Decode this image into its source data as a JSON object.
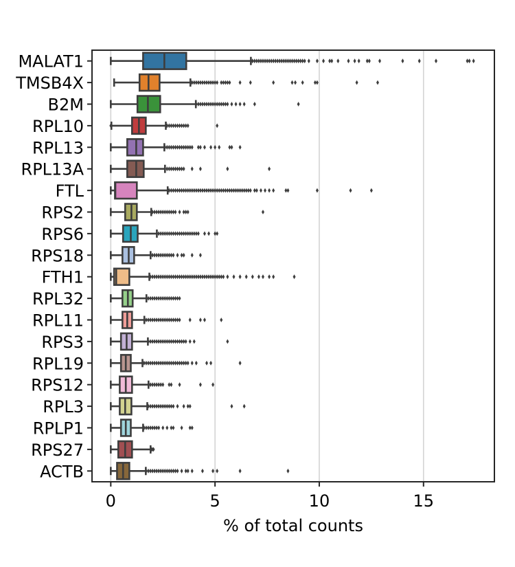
{
  "chart_data": {
    "type": "boxplot",
    "orientation": "horizontal",
    "title": "",
    "xlabel": "% of total counts",
    "ylabel": "",
    "xlim": [
      -0.9,
      18.4
    ],
    "xticks": [
      0,
      5,
      10,
      15
    ],
    "xtick_labels": [
      "0",
      "5",
      "10",
      "15"
    ],
    "grid": "vertical",
    "categories": [
      "MALAT1",
      "TMSB4X",
      "B2M",
      "RPL10",
      "RPL13",
      "RPL13A",
      "FTL",
      "RPS2",
      "RPS6",
      "RPS18",
      "FTH1",
      "RPL32",
      "RPL11",
      "RPS3",
      "RPL19",
      "RPS12",
      "RPL3",
      "RPLP1",
      "RPS27",
      "ACTB"
    ],
    "series": [
      {
        "name": "MALAT1",
        "color": "#3274a1",
        "whislo": 0.0,
        "q1": 1.55,
        "med": 2.57,
        "q3": 3.62,
        "whishi": 6.72,
        "fliers": [
          6.8,
          6.9,
          7.0,
          7.1,
          7.2,
          7.3,
          7.4,
          7.5,
          7.6,
          7.7,
          7.8,
          7.9,
          8.0,
          8.1,
          8.2,
          8.3,
          8.4,
          8.5,
          8.6,
          8.7,
          8.8,
          8.9,
          9.0,
          9.1,
          9.2,
          9.3,
          9.5,
          9.9,
          10.2,
          10.5,
          10.6,
          10.9,
          11.4,
          11.7,
          11.9,
          12.3,
          12.4,
          12.9,
          14.0,
          14.8,
          15.6,
          17.1,
          17.2,
          17.4
        ]
      },
      {
        "name": "TMSB4X",
        "color": "#e1812c",
        "whislo": 0.16,
        "q1": 1.38,
        "med": 1.81,
        "q3": 2.34,
        "whishi": 3.82,
        "fliers": [
          3.9,
          4.0,
          4.1,
          4.2,
          4.3,
          4.4,
          4.5,
          4.6,
          4.7,
          4.8,
          4.9,
          5.0,
          5.1,
          5.3,
          5.4,
          5.5,
          5.6,
          5.7,
          6.2,
          6.7,
          7.8,
          8.7,
          8.85,
          9.2,
          9.8,
          9.9,
          11.8,
          12.8
        ]
      },
      {
        "name": "B2M",
        "color": "#3a923a",
        "whislo": 0.0,
        "q1": 1.28,
        "med": 1.78,
        "q3": 2.37,
        "whishi": 4.08,
        "fliers": [
          4.1,
          4.2,
          4.3,
          4.4,
          4.5,
          4.6,
          4.7,
          4.8,
          4.9,
          5.0,
          5.1,
          5.2,
          5.3,
          5.4,
          5.5,
          5.6,
          5.8,
          6.0,
          6.2,
          6.4,
          6.9,
          9.0
        ]
      },
      {
        "name": "RPL10",
        "color": "#c03d3e",
        "whislo": 0.03,
        "q1": 1.02,
        "med": 1.35,
        "q3": 1.68,
        "whishi": 2.64,
        "fliers": [
          0.0,
          0.01,
          2.7,
          2.8,
          2.9,
          3.0,
          3.1,
          3.2,
          3.3,
          3.4,
          3.5,
          3.6,
          3.7,
          5.1
        ]
      },
      {
        "name": "RPL13",
        "color": "#9372b2",
        "whislo": 0.0,
        "q1": 0.79,
        "med": 1.22,
        "q3": 1.55,
        "whishi": 2.57,
        "fliers": [
          2.6,
          2.7,
          2.8,
          2.9,
          3.0,
          3.1,
          3.2,
          3.3,
          3.4,
          3.5,
          3.6,
          3.7,
          3.8,
          3.9,
          4.2,
          4.3,
          4.5,
          4.8,
          5.0,
          5.2,
          5.7,
          5.8,
          6.2
        ]
      },
      {
        "name": "RPL13A",
        "color": "#845b53",
        "whislo": 0.0,
        "q1": 0.79,
        "med": 1.22,
        "q3": 1.58,
        "whishi": 2.6,
        "fliers": [
          2.7,
          2.8,
          2.9,
          3.0,
          3.1,
          3.2,
          3.3,
          3.4,
          3.5,
          3.9,
          4.3,
          5.6,
          7.6
        ]
      },
      {
        "name": "FTL",
        "color": "#d684bd",
        "whislo": 0.0,
        "q1": 0.2,
        "med": 0.22,
        "q3": 1.25,
        "whishi": 2.73,
        "fliers": [
          2.8,
          2.9,
          3.0,
          3.1,
          3.2,
          3.3,
          3.4,
          3.5,
          3.6,
          3.7,
          3.8,
          3.9,
          4.0,
          4.1,
          4.2,
          4.3,
          4.4,
          4.5,
          4.6,
          4.7,
          4.8,
          4.9,
          5.0,
          5.1,
          5.2,
          5.3,
          5.4,
          5.5,
          5.6,
          5.7,
          5.8,
          5.9,
          6.0,
          6.1,
          6.2,
          6.3,
          6.4,
          6.5,
          6.6,
          6.7,
          6.9,
          7.0,
          7.2,
          7.4,
          7.6,
          7.8,
          8.4,
          8.5,
          9.9,
          11.5,
          12.5
        ]
      },
      {
        "name": "RPS2",
        "color": "#a9aa60",
        "whislo": 0.0,
        "q1": 0.69,
        "med": 0.99,
        "q3": 1.25,
        "whishi": 1.94,
        "fliers": [
          2.0,
          2.1,
          2.2,
          2.3,
          2.4,
          2.5,
          2.6,
          2.7,
          2.8,
          2.9,
          3.0,
          3.1,
          3.3,
          3.5,
          3.6,
          3.7,
          7.3
        ]
      },
      {
        "name": "RPS6",
        "color": "#2aa5bd",
        "whislo": 0.0,
        "q1": 0.59,
        "med": 0.96,
        "q3": 1.29,
        "whishi": 2.21,
        "fliers": [
          2.3,
          2.4,
          2.5,
          2.6,
          2.7,
          2.8,
          2.9,
          3.0,
          3.1,
          3.2,
          3.3,
          3.4,
          3.5,
          3.6,
          3.7,
          3.8,
          3.9,
          4.0,
          4.1,
          4.2,
          4.5,
          4.7,
          5.0,
          5.1
        ]
      },
      {
        "name": "RPS18",
        "color": "#aac0e0",
        "whislo": 0.0,
        "q1": 0.56,
        "med": 0.86,
        "q3": 1.12,
        "whishi": 1.91,
        "fliers": [
          2.0,
          2.1,
          2.2,
          2.3,
          2.4,
          2.5,
          2.6,
          2.7,
          2.8,
          2.9,
          3.0,
          3.2,
          3.4,
          3.5,
          3.9,
          4.3
        ]
      },
      {
        "name": "FTH1",
        "color": "#eebc88",
        "whislo": 0.0,
        "q1": 0.16,
        "med": 0.26,
        "q3": 0.89,
        "whishi": 1.85,
        "fliers": [
          1.9,
          2.0,
          2.1,
          2.2,
          2.3,
          2.4,
          2.5,
          2.6,
          2.7,
          2.8,
          2.9,
          3.0,
          3.1,
          3.2,
          3.3,
          3.4,
          3.5,
          3.6,
          3.7,
          3.8,
          3.9,
          4.0,
          4.1,
          4.2,
          4.3,
          4.4,
          4.5,
          4.6,
          4.7,
          4.8,
          4.9,
          5.0,
          5.1,
          5.2,
          5.3,
          5.4,
          5.6,
          5.9,
          6.2,
          6.5,
          6.8,
          7.1,
          7.3,
          7.6,
          7.8,
          8.8
        ]
      },
      {
        "name": "RPL32",
        "color": "#95d08a",
        "whislo": 0.0,
        "q1": 0.56,
        "med": 0.82,
        "q3": 1.05,
        "whishi": 1.71,
        "fliers": [
          1.8,
          1.9,
          2.0,
          2.1,
          2.2,
          2.3,
          2.4,
          2.5,
          2.6,
          2.7,
          2.8,
          2.9,
          3.0,
          3.1,
          3.2,
          3.3
        ]
      },
      {
        "name": "RPL11",
        "color": "#f09d98",
        "whislo": 0.0,
        "q1": 0.56,
        "med": 0.79,
        "q3": 1.02,
        "whishi": 1.61,
        "fliers": [
          1.7,
          1.8,
          1.9,
          2.0,
          2.1,
          2.2,
          2.3,
          2.4,
          2.5,
          2.6,
          2.7,
          2.8,
          2.9,
          3.0,
          3.1,
          3.2,
          3.3,
          3.8,
          4.3,
          4.5,
          5.3
        ]
      },
      {
        "name": "RPS3",
        "color": "#c3b1d6",
        "whislo": 0.0,
        "q1": 0.49,
        "med": 0.76,
        "q3": 1.02,
        "whishi": 1.78,
        "fliers": [
          1.8,
          1.9,
          2.0,
          2.1,
          2.2,
          2.3,
          2.4,
          2.5,
          2.6,
          2.7,
          2.8,
          2.9,
          3.0,
          3.1,
          3.2,
          3.3,
          3.4,
          3.5,
          3.6,
          3.8,
          4.0,
          5.6
        ]
      },
      {
        "name": "RPL19",
        "color": "#b99690",
        "whislo": 0.0,
        "q1": 0.49,
        "med": 0.72,
        "q3": 0.96,
        "whishi": 1.52,
        "fliers": [
          1.6,
          1.7,
          1.8,
          1.9,
          2.0,
          2.1,
          2.2,
          2.3,
          2.4,
          2.5,
          2.6,
          2.7,
          2.8,
          2.9,
          3.0,
          3.1,
          3.2,
          3.3,
          3.4,
          3.5,
          3.6,
          3.7,
          3.9,
          4.1,
          4.6,
          4.8,
          6.2
        ]
      },
      {
        "name": "RPS12",
        "color": "#f1bbd8",
        "whislo": 0.0,
        "q1": 0.43,
        "med": 0.72,
        "q3": 1.02,
        "whishi": 1.81,
        "fliers": [
          1.9,
          2.0,
          2.1,
          2.2,
          2.3,
          2.4,
          2.5,
          2.8,
          2.9,
          3.3,
          4.3,
          4.9
        ]
      },
      {
        "name": "RPL3",
        "color": "#d3d390",
        "whislo": 0.0,
        "q1": 0.43,
        "med": 0.69,
        "q3": 0.99,
        "whishi": 1.75,
        "fliers": [
          1.8,
          1.9,
          2.0,
          2.1,
          2.2,
          2.3,
          2.4,
          2.5,
          2.6,
          2.7,
          2.8,
          2.9,
          3.0,
          3.2,
          3.5,
          3.7,
          3.8,
          5.8,
          6.4
        ]
      },
      {
        "name": "RPLP1",
        "color": "#9fd5dd",
        "whislo": 0.0,
        "q1": 0.49,
        "med": 0.72,
        "q3": 0.96,
        "whishi": 1.55,
        "fliers": [
          1.6,
          1.7,
          1.8,
          1.9,
          2.0,
          2.1,
          2.2,
          2.3,
          2.5,
          2.7,
          2.9,
          3.0,
          3.4,
          3.8,
          3.9
        ]
      },
      {
        "name": "RPS27",
        "color": "#a14f52",
        "whislo": 0.0,
        "q1": 0.36,
        "med": 0.69,
        "q3": 1.02,
        "whishi": 1.91,
        "fliers": [
          1.95,
          2.0,
          2.05
        ]
      },
      {
        "name": "ACTB",
        "color": "#87673a",
        "whislo": 0.0,
        "q1": 0.3,
        "med": 0.59,
        "q3": 0.89,
        "whishi": 1.68,
        "fliers": [
          1.7,
          1.8,
          1.9,
          2.0,
          2.1,
          2.2,
          2.3,
          2.4,
          2.5,
          2.6,
          2.7,
          2.8,
          2.9,
          3.0,
          3.1,
          3.2,
          3.4,
          3.6,
          3.7,
          3.9,
          4.4,
          4.9,
          5.1,
          6.2,
          8.5
        ]
      }
    ]
  }
}
